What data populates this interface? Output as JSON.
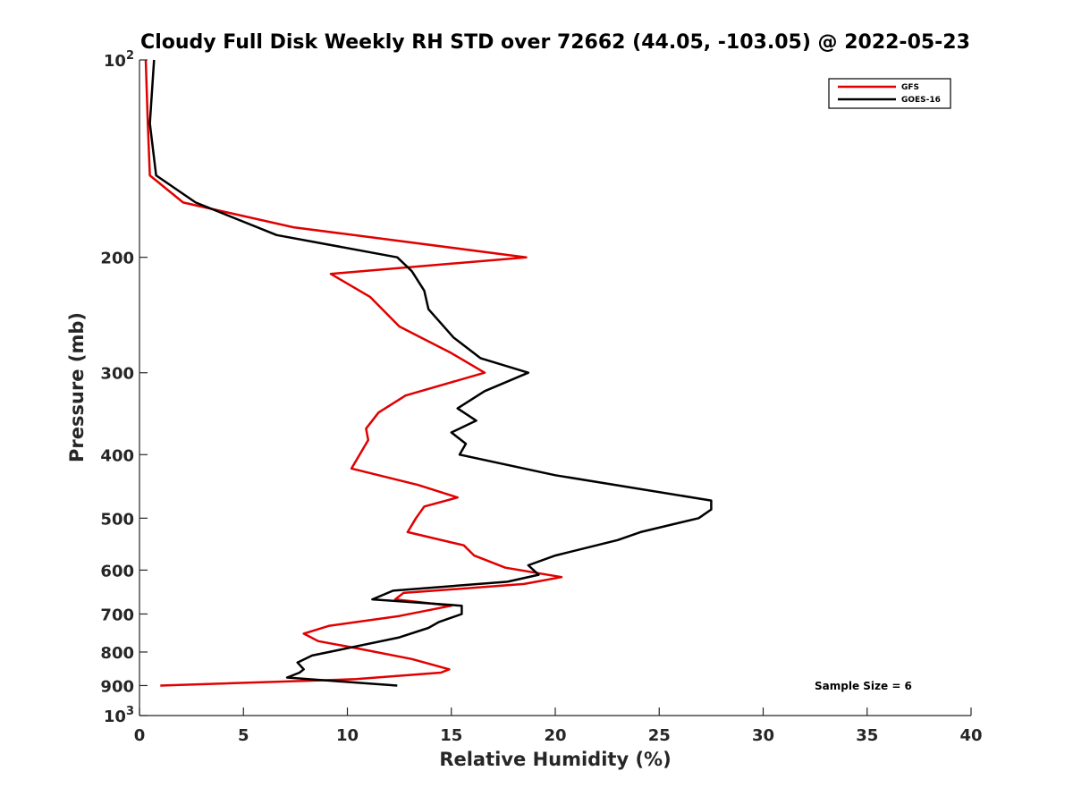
{
  "chart_data": {
    "type": "line",
    "title": "Cloudy Full Disk Weekly RH STD over 72662 (44.05, -103.05) @ 2022-05-23",
    "xlabel": "Relative Humidity (%)",
    "ylabel": "Pressure (mb)",
    "xlim": [
      0,
      40
    ],
    "ylim": [
      100,
      1000
    ],
    "yscale": "log",
    "y_reversed": true,
    "x_ticks": [
      0,
      5,
      10,
      15,
      20,
      25,
      30,
      35,
      40
    ],
    "y_ticks": [
      {
        "value": 100,
        "base": "10",
        "exp": "2"
      },
      {
        "value": 200,
        "label": "200"
      },
      {
        "value": 300,
        "label": "300"
      },
      {
        "value": 400,
        "label": "400"
      },
      {
        "value": 500,
        "label": "500"
      },
      {
        "value": 600,
        "label": "600"
      },
      {
        "value": 700,
        "label": "700"
      },
      {
        "value": 800,
        "label": "800"
      },
      {
        "value": 900,
        "label": "900"
      },
      {
        "value": 1000,
        "base": "10",
        "exp": "3"
      }
    ],
    "legend_position": "top-right",
    "annotation": "Sample Size = 6",
    "series": [
      {
        "name": "GFS",
        "color": "#e00000",
        "points": [
          [
            0.3,
            100
          ],
          [
            0.4,
            125
          ],
          [
            0.5,
            150
          ],
          [
            2.1,
            165
          ],
          [
            7.4,
            180
          ],
          [
            18.6,
            200
          ],
          [
            9.2,
            212
          ],
          [
            11.1,
            230
          ],
          [
            12.5,
            255
          ],
          [
            15.0,
            280
          ],
          [
            16.6,
            300
          ],
          [
            12.8,
            325
          ],
          [
            11.5,
            345
          ],
          [
            10.9,
            365
          ],
          [
            11.0,
            380
          ],
          [
            10.2,
            420
          ],
          [
            13.4,
            445
          ],
          [
            15.3,
            465
          ],
          [
            13.7,
            480
          ],
          [
            13.3,
            500
          ],
          [
            12.9,
            525
          ],
          [
            15.6,
            550
          ],
          [
            16.1,
            570
          ],
          [
            17.6,
            595
          ],
          [
            20.3,
            615
          ],
          [
            18.5,
            630
          ],
          [
            12.7,
            650
          ],
          [
            12.3,
            665
          ],
          [
            15.0,
            680
          ],
          [
            12.5,
            705
          ],
          [
            9.1,
            730
          ],
          [
            7.9,
            750
          ],
          [
            8.6,
            770
          ],
          [
            10.5,
            790
          ],
          [
            13.1,
            820
          ],
          [
            14.9,
            850
          ],
          [
            14.5,
            860
          ],
          [
            10.4,
            880
          ],
          [
            1.0,
            900
          ]
        ]
      },
      {
        "name": "GOES-16",
        "color": "#000000",
        "points": [
          [
            0.7,
            100
          ],
          [
            0.5,
            125
          ],
          [
            0.8,
            150
          ],
          [
            2.7,
            165
          ],
          [
            6.6,
            185
          ],
          [
            12.4,
            200
          ],
          [
            13.1,
            210
          ],
          [
            13.7,
            225
          ],
          [
            13.9,
            240
          ],
          [
            15.1,
            265
          ],
          [
            16.4,
            285
          ],
          [
            18.7,
            300
          ],
          [
            16.6,
            320
          ],
          [
            15.3,
            340
          ],
          [
            16.2,
            355
          ],
          [
            15.0,
            370
          ],
          [
            15.7,
            385
          ],
          [
            15.4,
            400
          ],
          [
            20.0,
            430
          ],
          [
            27.5,
            470
          ],
          [
            27.5,
            485
          ],
          [
            26.9,
            500
          ],
          [
            24.1,
            525
          ],
          [
            23.0,
            540
          ],
          [
            20.0,
            570
          ],
          [
            18.7,
            590
          ],
          [
            19.2,
            610
          ],
          [
            17.7,
            625
          ],
          [
            12.2,
            645
          ],
          [
            11.2,
            665
          ],
          [
            15.5,
            680
          ],
          [
            15.5,
            700
          ],
          [
            14.4,
            720
          ],
          [
            13.9,
            735
          ],
          [
            12.5,
            760
          ],
          [
            8.3,
            810
          ],
          [
            7.6,
            830
          ],
          [
            7.9,
            850
          ],
          [
            7.7,
            860
          ],
          [
            7.1,
            875
          ],
          [
            12.4,
            900
          ]
        ]
      }
    ]
  }
}
